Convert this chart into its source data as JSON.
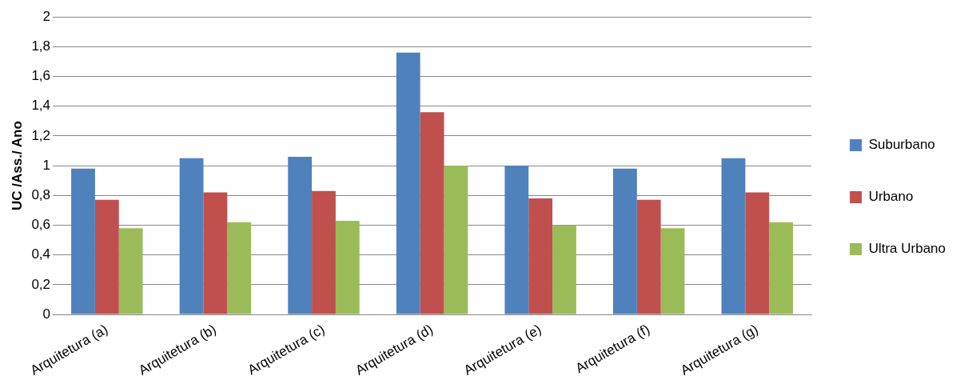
{
  "chart_data": {
    "type": "bar",
    "ylabel": "UC /Ass./ Ano",
    "categories": [
      "Arquitetura (a)",
      "Arquitetura (b)",
      "Arquitetura (c)",
      "Arquitetura (d)",
      "Arquitetura (e)",
      "Arquitetura (f)",
      "Arquitetura (g)"
    ],
    "series": [
      {
        "name": "Suburbano",
        "color": "#4f81bd",
        "values": [
          0.98,
          1.05,
          1.06,
          1.76,
          1.0,
          0.98,
          1.05
        ]
      },
      {
        "name": "Urbano",
        "color": "#c0504d",
        "values": [
          0.77,
          0.82,
          0.83,
          1.36,
          0.78,
          0.77,
          0.82
        ]
      },
      {
        "name": "Ultra Urbano",
        "color": "#9bbb59",
        "values": [
          0.58,
          0.62,
          0.63,
          1.0,
          0.6,
          0.58,
          0.62
        ]
      }
    ],
    "ylim": [
      0,
      2
    ],
    "yticks": [
      0,
      {
        "value": 0.2,
        "label": "0,2"
      },
      {
        "value": 0.4,
        "label": "0,4"
      },
      {
        "value": 0.6,
        "label": "0,6"
      },
      {
        "value": 0.8,
        "label": "0,8"
      },
      1,
      {
        "value": 1.2,
        "label": "1,2"
      },
      {
        "value": 1.4,
        "label": "1,4"
      },
      {
        "value": 1.6,
        "label": "1,6"
      },
      {
        "value": 1.8,
        "label": "1,8"
      },
      2
    ],
    "grid": "y",
    "legend": "right"
  }
}
